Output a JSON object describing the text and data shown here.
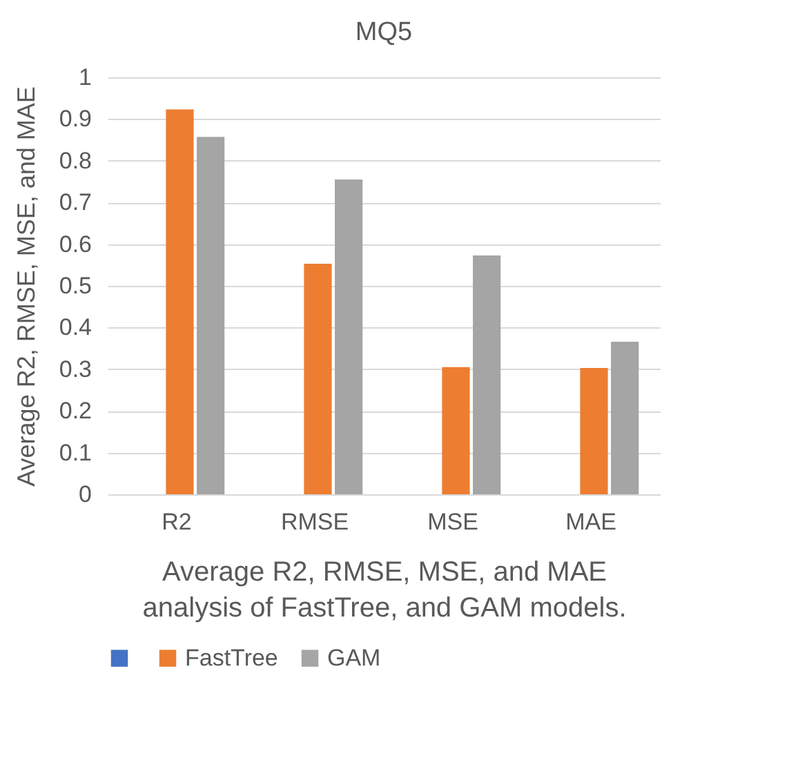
{
  "chart_data": {
    "type": "bar",
    "title": "MQ5",
    "xlabel": "Average R2, RMSE, MSE, and MAE analysis of FastTree, and GAM models.",
    "ylabel": "Average R2, RMSE, MSE, and MAE",
    "categories": [
      "R2",
      "RMSE",
      "MSE",
      "MAE"
    ],
    "series": [
      {
        "color": "#4472c4",
        "values": [
          0,
          0,
          0,
          0
        ]
      },
      {
        "name": "FastTree",
        "color": "#ed7d31",
        "values": [
          0.923,
          0.553,
          0.305,
          0.303
        ]
      },
      {
        "name": "GAM",
        "color": "#a5a5a5",
        "values": [
          0.857,
          0.755,
          0.573,
          0.366
        ]
      }
    ],
    "ylim": [
      0,
      1
    ],
    "yticks": [
      0,
      0.1,
      0.2,
      0.3,
      0.4,
      0.5,
      0.6,
      0.7,
      0.8,
      0.9,
      1
    ],
    "grid": "y",
    "legend": "bottom"
  }
}
